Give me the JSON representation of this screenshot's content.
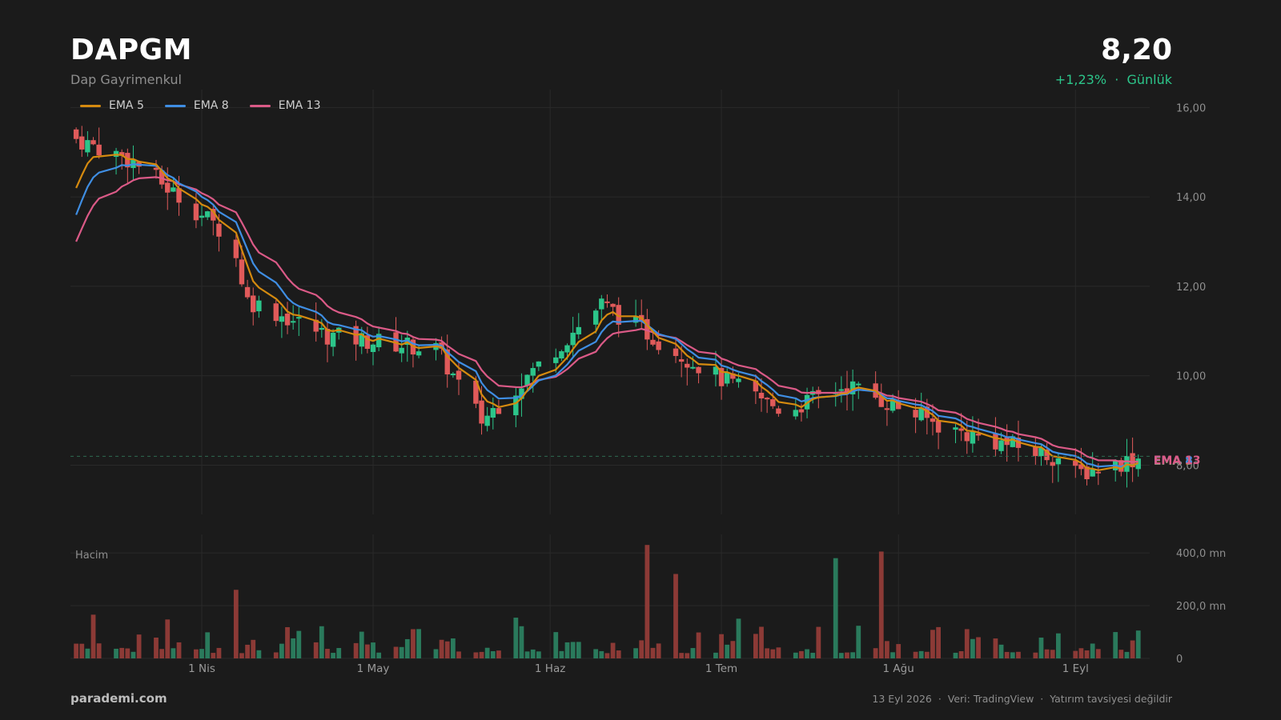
{
  "header": {
    "ticker": "DAPGM",
    "company": "Dap Gayrimenkul",
    "price": "8,20",
    "change": "+1,23%",
    "period": "Günlük",
    "separator": "·"
  },
  "footer": {
    "brand": "parademi.com",
    "date": "13 Eyl 2026",
    "source": "Veri: TradingView",
    "disclaimer": "Yatırım tavsiyesi değildir",
    "separator": "·"
  },
  "colors": {
    "background": "#1b1b1b",
    "up": "#2cc58a",
    "down": "#e05a5a",
    "volume_up": "#2a7a5c",
    "volume_down": "#8c3a36",
    "ema5": "#d58a0f",
    "ema8": "#3f8ee3",
    "ema13": "#db5a87",
    "grid": "#2a2a2a",
    "change_text": "#2cc58a"
  },
  "chart_data": {
    "type": "candlestick",
    "title": "DAPGM",
    "timeframe": "Günlük",
    "price_axis": {
      "ticks": [
        "16,00",
        "14,00",
        "12,00",
        "10,00",
        "8,00"
      ],
      "tick_values": [
        16,
        14,
        12,
        10,
        8
      ],
      "range": [
        6.9,
        16.4
      ]
    },
    "volume_axis": {
      "label": "Hacim",
      "ticks": [
        "400,0 mn",
        "200,0 mn",
        "0"
      ],
      "tick_values": [
        400,
        200,
        0
      ],
      "unit": "mn",
      "range": [
        0,
        470
      ]
    },
    "x_axis": {
      "labels": [
        "1 Nis",
        "1 May",
        "1 Haz",
        "1 Tem",
        "1 Ağu",
        "1 Eyl"
      ],
      "label_days": [
        31,
        61,
        92,
        122,
        153,
        184
      ]
    },
    "legend": [
      "EMA 5",
      "EMA 8",
      "EMA 13"
    ],
    "last_price": 8.2,
    "last_price_line": "dashed",
    "end_labels": [
      "EMA 5",
      "EMA 8",
      "EMA 13"
    ],
    "grid": true,
    "key_closes": [
      {
        "date": "2026-03-10",
        "close": 15.3
      },
      {
        "date": "2026-03-20",
        "close": 14.8
      },
      {
        "date": "2026-04-06",
        "close": 13.1
      },
      {
        "date": "2026-04-09",
        "close": 11.7
      },
      {
        "date": "2026-04-23",
        "close": 10.9
      },
      {
        "date": "2026-05-12",
        "close": 10.6
      },
      {
        "date": "2026-05-20",
        "close": 9.0
      },
      {
        "date": "2026-06-10",
        "close": 11.6
      },
      {
        "date": "2026-06-30",
        "close": 10.0
      },
      {
        "date": "2026-07-12",
        "close": 9.2
      },
      {
        "date": "2026-07-23",
        "close": 9.8
      },
      {
        "date": "2026-08-10",
        "close": 8.8
      },
      {
        "date": "2026-08-31",
        "close": 8.1
      },
      {
        "date": "2026-09-01",
        "close": 7.8
      },
      {
        "date": "2026-09-13",
        "close": 8.2
      }
    ],
    "ema_endpoints": {
      "EMA 5": {
        "start": 14.2,
        "end": 8.1
      },
      "EMA 8": {
        "start": 13.6,
        "end": 8.1
      },
      "EMA 13": {
        "start": 13.0,
        "end": 8.1
      }
    },
    "volume_peaks_mn": [
      {
        "date": "2026-06-18",
        "value": 430
      },
      {
        "date": "2026-07-29",
        "value": 405
      },
      {
        "date": "2026-07-20",
        "value": 380
      },
      {
        "date": "2026-06-23",
        "value": 320
      },
      {
        "date": "2026-04-07",
        "value": 260
      }
    ]
  }
}
